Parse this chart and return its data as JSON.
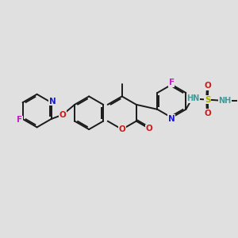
{
  "bg_color": "#e0e0e0",
  "bond_color": "#1a1a1a",
  "bond_width": 1.4,
  "atom_colors": {
    "N": "#1a1acc",
    "O": "#cc1a1a",
    "F": "#bb22bb",
    "S": "#aaaa00",
    "H_teal": "#449999",
    "C": "#1a1a1a"
  },
  "font_size": 7.5
}
